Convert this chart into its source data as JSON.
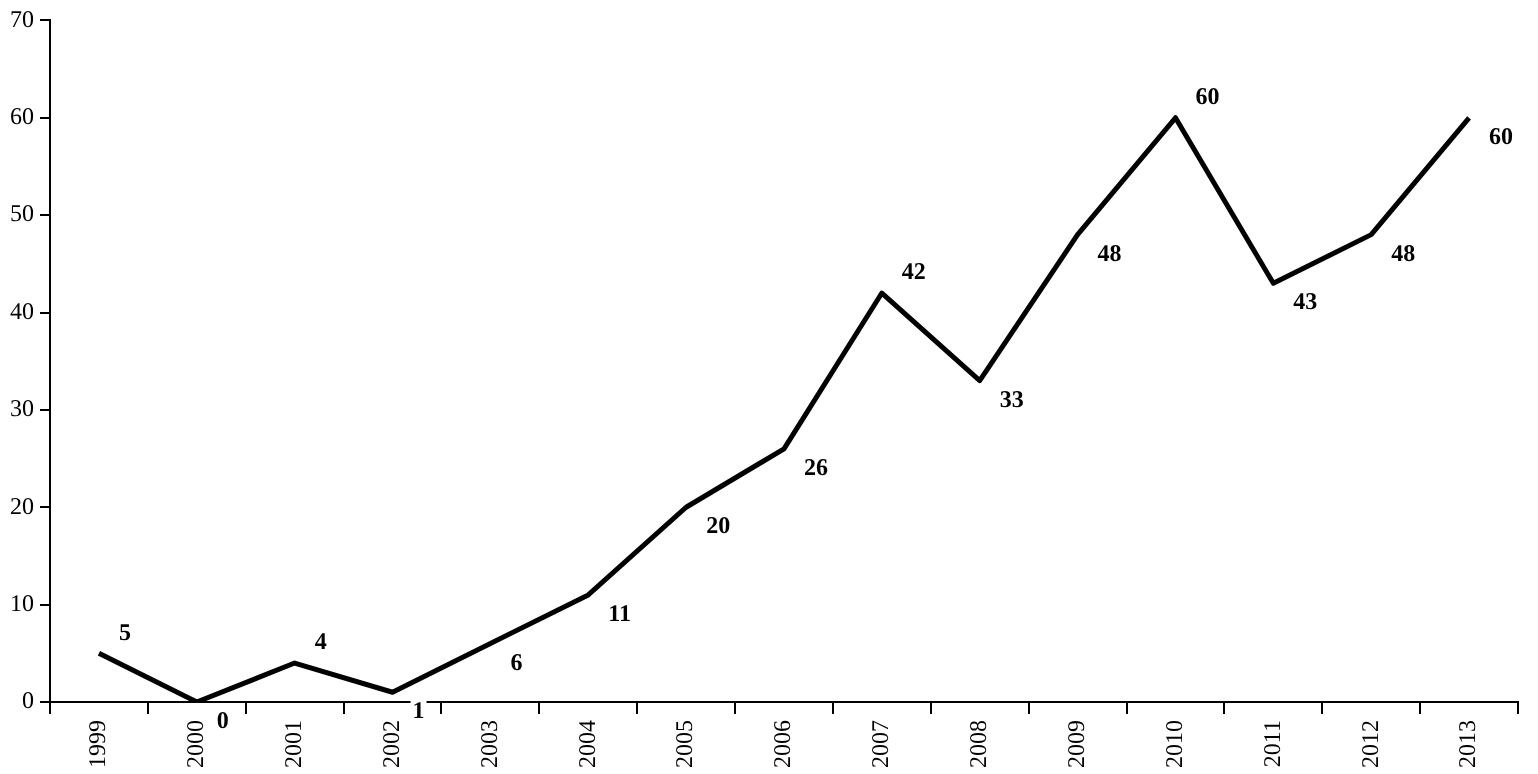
{
  "chart_data": {
    "type": "line",
    "categories": [
      "1999",
      "2000",
      "2001",
      "2002",
      "2003",
      "2004",
      "2005",
      "2006",
      "2007",
      "2008",
      "2009",
      "2010",
      "2011",
      "2012",
      "2013"
    ],
    "series": [
      {
        "color": "#000000",
        "values": [
          5,
          0,
          4,
          1,
          6,
          11,
          20,
          26,
          42,
          33,
          48,
          60,
          43,
          48,
          60
        ]
      }
    ],
    "ylim": [
      0,
      70
    ],
    "yticks": [
      0,
      10,
      20,
      30,
      40,
      50,
      60,
      70
    ],
    "grid": false,
    "legend": false,
    "marker": "none",
    "line_style": "solid",
    "data_labels": true
  }
}
